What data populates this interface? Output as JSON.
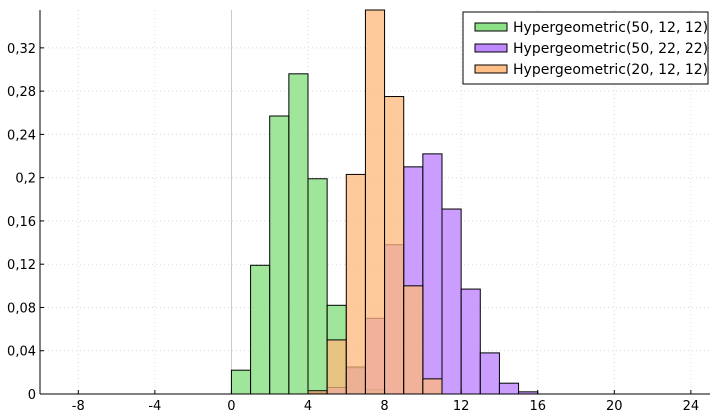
{
  "chart_data": {
    "type": "bar",
    "title": "",
    "xlabel": "",
    "ylabel": "",
    "xlim": [
      -10,
      25
    ],
    "ylim": [
      0,
      0.355
    ],
    "xticks": [
      -8,
      -4,
      0,
      4,
      8,
      12,
      16,
      20,
      24
    ],
    "xtick_labels": [
      "-8",
      "-4",
      "0",
      "4",
      "8",
      "12",
      "16",
      "20",
      "24"
    ],
    "yticks": [
      0,
      0.04,
      0.08,
      0.12,
      0.16,
      0.2,
      0.24,
      0.28,
      0.32
    ],
    "ytick_labels": [
      "0",
      "0,04",
      "0,08",
      "0,12",
      "0,16",
      "0,2",
      "0,24",
      "0,28",
      "0,32"
    ],
    "grid": true,
    "legend_position": "top-right",
    "bin_width": 1,
    "series": [
      {
        "name": "Hypergeometric(50, 12, 12)",
        "color": "#7fde7a",
        "bins": [
          [
            0,
            0.022
          ],
          [
            1,
            0.119
          ],
          [
            2,
            0.257
          ],
          [
            3,
            0.296
          ],
          [
            4,
            0.199
          ],
          [
            5,
            0.082
          ],
          [
            6,
            0.024
          ],
          [
            7,
            0.004
          ]
        ]
      },
      {
        "name": "Hypergeometric(50, 22, 22)",
        "color": "#b87cff",
        "bins": [
          [
            4,
            0.001
          ],
          [
            5,
            0.006
          ],
          [
            6,
            0.025
          ],
          [
            7,
            0.07
          ],
          [
            8,
            0.138
          ],
          [
            9,
            0.21
          ],
          [
            10,
            0.222
          ],
          [
            11,
            0.171
          ],
          [
            12,
            0.097
          ],
          [
            13,
            0.038
          ],
          [
            14,
            0.01
          ],
          [
            15,
            0.002
          ]
        ]
      },
      {
        "name": "Hypergeometric(20, 12, 12)",
        "color": "#ffb87a",
        "bins": [
          [
            4,
            0.003
          ],
          [
            5,
            0.05
          ],
          [
            6,
            0.203
          ],
          [
            7,
            0.355
          ],
          [
            8,
            0.275
          ],
          [
            9,
            0.1
          ],
          [
            10,
            0.014
          ]
        ]
      }
    ]
  }
}
